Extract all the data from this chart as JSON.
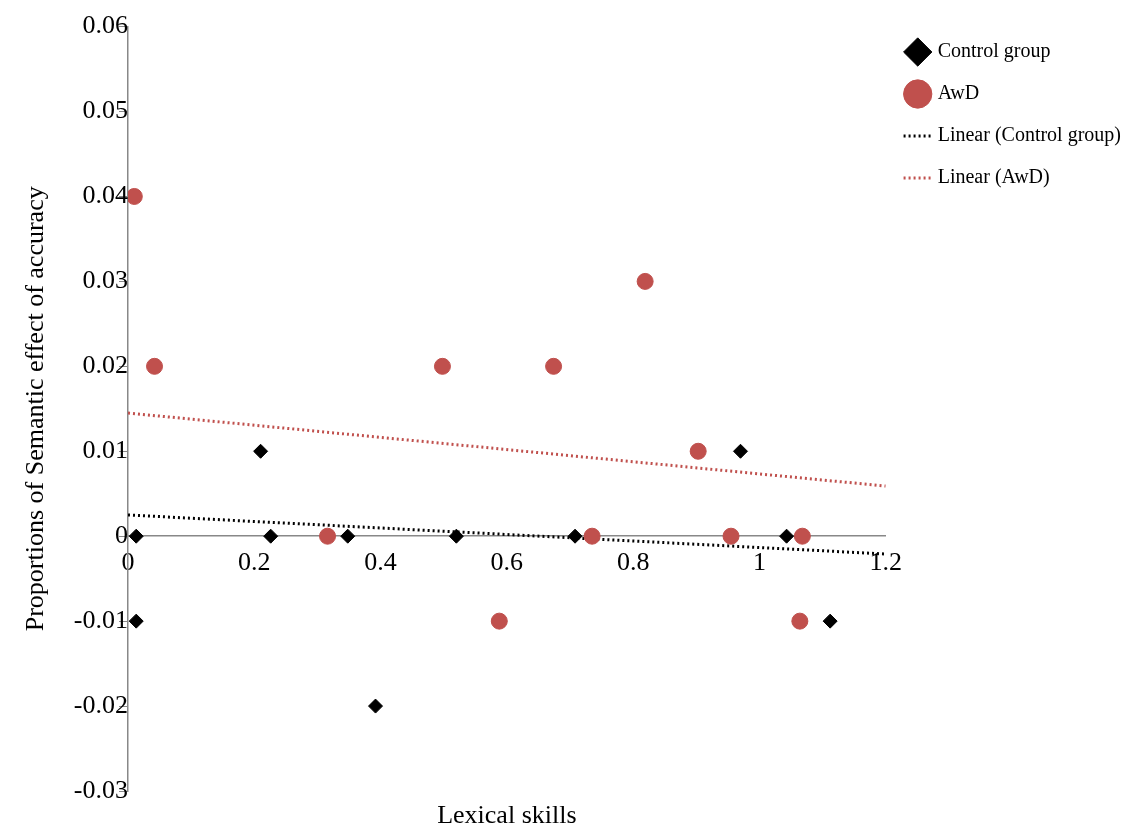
{
  "chart_data": {
    "type": "scatter",
    "xlabel": "Lexical skills",
    "ylabel": "Proportions of Semantic effect of accuracy",
    "xlim": [
      0,
      1.2
    ],
    "xticks": [
      0,
      0.2,
      0.4,
      0.6,
      0.8,
      1,
      1.2
    ],
    "ylim": [
      -0.03,
      0.06
    ],
    "yticks": [
      -0.03,
      -0.02,
      -0.01,
      0,
      0.01,
      0.02,
      0.03,
      0.04,
      0.05,
      0.06
    ],
    "grid": false,
    "legend": "right",
    "series": [
      {
        "name": "Control group",
        "marker": "diamond",
        "color": "#000000",
        "x": [
          0.013,
          0.013,
          0.21,
          0.226,
          0.348,
          0.392,
          0.52,
          0.708,
          0.97,
          1.043,
          1.112
        ],
        "values": [
          0,
          -0.01,
          0.01,
          0,
          0,
          -0.02,
          0,
          0,
          0.01,
          0,
          -0.01
        ]
      },
      {
        "name": "AwD",
        "marker": "circle",
        "color": "#c0504d",
        "x": [
          0.01,
          0.042,
          0.316,
          0.498,
          0.588,
          0.674,
          0.735,
          0.819,
          0.903,
          0.955,
          1.068,
          1.064
        ],
        "values": [
          0.04,
          0.02,
          0,
          0.02,
          -0.01,
          0.02,
          0,
          0.03,
          0.01,
          0,
          0,
          -0.01
        ]
      },
      {
        "name": "Linear (Control group)",
        "type": "line",
        "line_style": "dotted",
        "marker": "none",
        "color": "#000000",
        "x": [
          0,
          1.2
        ],
        "values": [
          0.0025,
          -0.0021
        ]
      },
      {
        "name": "Linear (AwD)",
        "type": "line",
        "line_style": "dotted",
        "marker": "none",
        "color": "#c0504d",
        "x": [
          0,
          1.2
        ],
        "values": [
          0.0145,
          0.0059
        ]
      }
    ]
  }
}
